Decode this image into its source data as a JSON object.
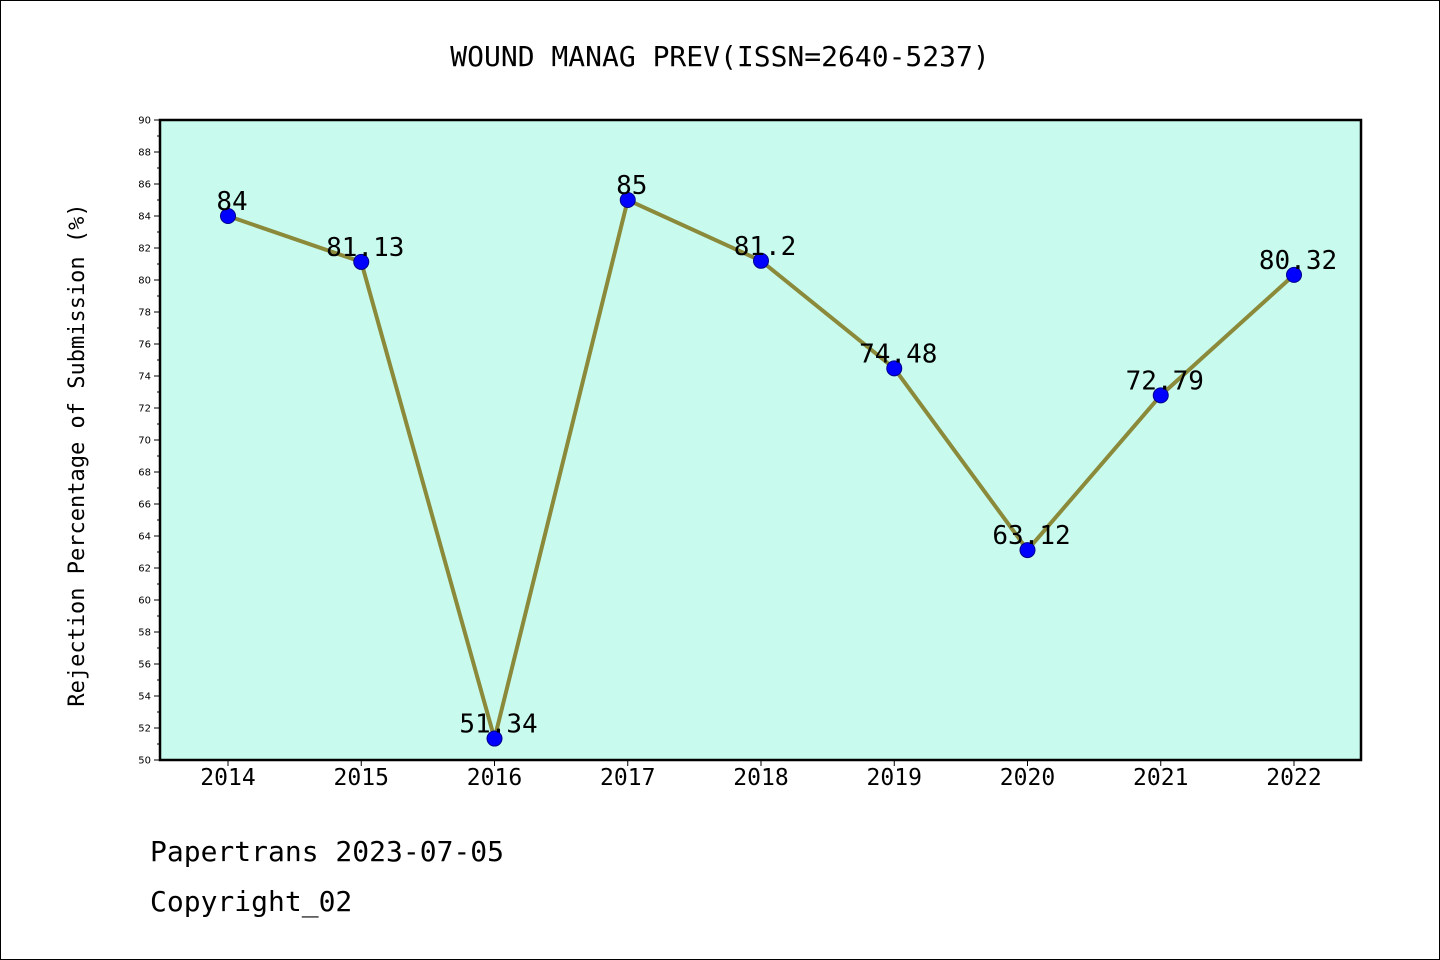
{
  "chart_data": {
    "type": "line",
    "title": "WOUND MANAG PREV(ISSN=2640-5237)",
    "xlabel": "",
    "ylabel": "Rejection Percentage of Submission (%)",
    "categories": [
      "2014",
      "2015",
      "2016",
      "2017",
      "2018",
      "2019",
      "2020",
      "2021",
      "2022"
    ],
    "values": [
      84,
      81.13,
      51.34,
      85,
      81.2,
      74.48,
      63.12,
      72.79,
      80.32
    ],
    "data_labels": [
      "84",
      "81.13",
      "51.34",
      "85",
      "81.2",
      "74.48",
      "63.12",
      "72.79",
      "80.32"
    ],
    "ylim": [
      50,
      90
    ],
    "yticks": [
      50,
      52,
      54,
      56,
      58,
      60,
      62,
      64,
      66,
      68,
      70,
      72,
      74,
      76,
      78,
      80,
      82,
      84,
      86,
      88,
      90
    ],
    "grid": false,
    "colors": {
      "plot_background": "#c8fbee",
      "line": "#8b8a3a",
      "marker": "#0000ff"
    }
  },
  "footer": {
    "line1": "Papertrans 2023-07-05",
    "line2": "Copyright_02"
  }
}
